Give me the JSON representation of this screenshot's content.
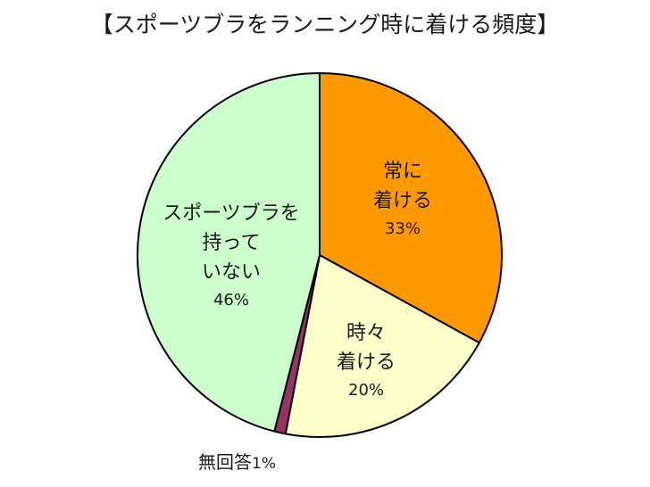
{
  "chart_data": {
    "type": "pie",
    "title": "【スポーツブラをランニング時に着ける頻度】",
    "start_angle_deg": 0,
    "direction": "clockwise",
    "slices": [
      {
        "label": "常に着ける",
        "label_lines": [
          "常に",
          "着ける"
        ],
        "value": 33,
        "pct_text": "33%",
        "color": "#FF9900"
      },
      {
        "label": "時々着ける",
        "label_lines": [
          "時々",
          "着ける"
        ],
        "value": 20,
        "pct_text": "20%",
        "color": "#FFFFCC"
      },
      {
        "label": "無回答",
        "label_lines": [
          "無回答"
        ],
        "value": 1,
        "pct_text": "1%",
        "color": "#993366"
      },
      {
        "label": "スポーツブラを持っていない",
        "label_lines": [
          "スポーツブラを",
          "持って",
          "いない"
        ],
        "value": 46,
        "pct_text": "46%",
        "color": "#CCFFCC"
      }
    ],
    "legend": null,
    "outline_color": "#000000"
  },
  "labels": {
    "always": {
      "line1": "常に",
      "line2": "着ける",
      "pct": "33%"
    },
    "sometimes": {
      "line1": "時々",
      "line2": "着ける",
      "pct": "20%"
    },
    "no_answer": {
      "text": "無回答",
      "pct": "1%"
    },
    "not_own": {
      "line1": "スポーツブラを",
      "line2": "持って",
      "line3": "いない",
      "pct": "46%"
    }
  }
}
